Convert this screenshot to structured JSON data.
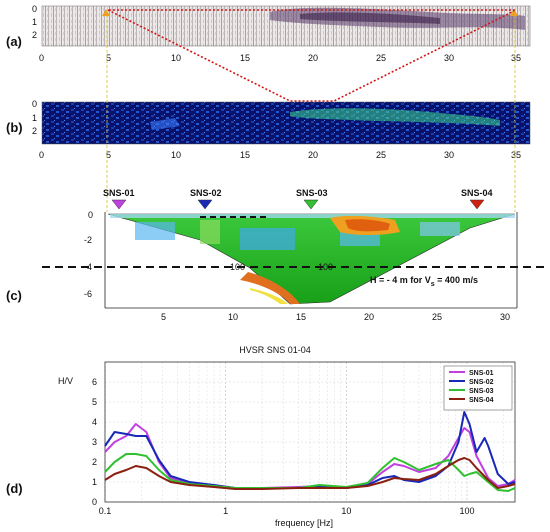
{
  "figure": {
    "panel_labels": [
      "(a)",
      "(b)",
      "(c)",
      "(d)"
    ]
  },
  "panel_a": {
    "x_ticks": [
      "0",
      "5",
      "10",
      "15",
      "20",
      "25",
      "30",
      "35"
    ],
    "y_ticks": [
      "0",
      "1",
      "2"
    ]
  },
  "panel_b": {
    "x_ticks": [
      "0",
      "5",
      "10",
      "15",
      "20",
      "25",
      "30",
      "35"
    ],
    "y_ticks": [
      "0",
      "1",
      "2"
    ]
  },
  "panel_c": {
    "stations": [
      {
        "name": "SNS-01",
        "color": "#c040e0"
      },
      {
        "name": "SNS-02",
        "color": "#1a28b8"
      },
      {
        "name": "SNS-03",
        "color": "#30c030"
      },
      {
        "name": "SNS-04",
        "color": "#d02010"
      }
    ],
    "x_ticks": [
      "5",
      "10",
      "15",
      "20",
      "25",
      "30"
    ],
    "y_ticks": [
      "0",
      "-2",
      "-4",
      "-6"
    ],
    "annotation_prefix": "H = - 4 m for V",
    "annotation_sub": "s",
    "annotation_suffix": " = 400 m/s",
    "contour_labels": [
      "100",
      "100"
    ]
  },
  "chart_data": {
    "type": "line",
    "title": "HVSR  SNS 01-04",
    "xlabel": "frequency [Hz]",
    "ylabel": "H/V",
    "xscale": "log",
    "xlim": [
      0.1,
      250
    ],
    "ylim": [
      0,
      7
    ],
    "x_tick_labels": [
      "0.1",
      "1",
      "10",
      "100"
    ],
    "y_tick_labels": [
      "0",
      "1",
      "2",
      "3",
      "4",
      "5",
      "6"
    ],
    "legend_position": "top-right",
    "grid": true,
    "series": [
      {
        "name": "SNS-01",
        "color": "#c040e0",
        "points": [
          [
            0.1,
            2.5
          ],
          [
            0.12,
            3.0
          ],
          [
            0.15,
            3.3
          ],
          [
            0.18,
            3.9
          ],
          [
            0.22,
            3.5
          ],
          [
            0.28,
            2.0
          ],
          [
            0.35,
            1.2
          ],
          [
            0.5,
            0.95
          ],
          [
            0.8,
            0.8
          ],
          [
            1.2,
            0.7
          ],
          [
            2,
            0.7
          ],
          [
            4,
            0.75
          ],
          [
            6,
            0.8
          ],
          [
            10,
            0.7
          ],
          [
            15,
            0.9
          ],
          [
            20,
            1.5
          ],
          [
            25,
            1.9
          ],
          [
            30,
            1.8
          ],
          [
            40,
            1.5
          ],
          [
            55,
            1.7
          ],
          [
            70,
            2.3
          ],
          [
            85,
            3.2
          ],
          [
            95,
            3.7
          ],
          [
            105,
            3.5
          ],
          [
            120,
            2.3
          ],
          [
            150,
            1.2
          ],
          [
            180,
            0.8
          ],
          [
            220,
            0.9
          ],
          [
            250,
            1.1
          ]
        ]
      },
      {
        "name": "SNS-02",
        "color": "#1a28b8",
        "points": [
          [
            0.1,
            2.8
          ],
          [
            0.12,
            3.5
          ],
          [
            0.15,
            3.4
          ],
          [
            0.18,
            3.3
          ],
          [
            0.22,
            3.3
          ],
          [
            0.28,
            2.1
          ],
          [
            0.35,
            1.3
          ],
          [
            0.5,
            1.0
          ],
          [
            0.8,
            0.85
          ],
          [
            1.2,
            0.7
          ],
          [
            2,
            0.7
          ],
          [
            4,
            0.7
          ],
          [
            6,
            0.8
          ],
          [
            10,
            0.7
          ],
          [
            15,
            0.85
          ],
          [
            20,
            1.2
          ],
          [
            25,
            1.3
          ],
          [
            30,
            1.1
          ],
          [
            40,
            1.0
          ],
          [
            55,
            1.3
          ],
          [
            70,
            1.8
          ],
          [
            85,
            3.0
          ],
          [
            95,
            4.5
          ],
          [
            105,
            3.9
          ],
          [
            120,
            2.5
          ],
          [
            140,
            3.2
          ],
          [
            150,
            2.8
          ],
          [
            180,
            1.4
          ],
          [
            220,
            0.9
          ],
          [
            250,
            1.0
          ]
        ]
      },
      {
        "name": "SNS-03",
        "color": "#30c030",
        "points": [
          [
            0.1,
            1.5
          ],
          [
            0.12,
            2.0
          ],
          [
            0.15,
            2.4
          ],
          [
            0.18,
            2.4
          ],
          [
            0.22,
            2.3
          ],
          [
            0.28,
            1.6
          ],
          [
            0.35,
            1.1
          ],
          [
            0.5,
            0.9
          ],
          [
            0.8,
            0.8
          ],
          [
            1.2,
            0.7
          ],
          [
            2,
            0.7
          ],
          [
            4,
            0.7
          ],
          [
            6,
            0.85
          ],
          [
            10,
            0.75
          ],
          [
            15,
            0.95
          ],
          [
            20,
            1.7
          ],
          [
            25,
            2.2
          ],
          [
            30,
            2.0
          ],
          [
            40,
            1.6
          ],
          [
            55,
            1.9
          ],
          [
            70,
            2.1
          ],
          [
            85,
            1.6
          ],
          [
            95,
            1.3
          ],
          [
            105,
            1.4
          ],
          [
            120,
            1.5
          ],
          [
            150,
            1.0
          ],
          [
            180,
            0.6
          ],
          [
            220,
            0.55
          ],
          [
            250,
            0.7
          ]
        ]
      },
      {
        "name": "SNS-04",
        "color": "#8a2010",
        "points": [
          [
            0.1,
            1.1
          ],
          [
            0.12,
            1.4
          ],
          [
            0.15,
            1.6
          ],
          [
            0.18,
            1.8
          ],
          [
            0.22,
            1.7
          ],
          [
            0.28,
            1.3
          ],
          [
            0.35,
            1.0
          ],
          [
            0.5,
            0.85
          ],
          [
            0.8,
            0.75
          ],
          [
            1.2,
            0.65
          ],
          [
            2,
            0.65
          ],
          [
            4,
            0.7
          ],
          [
            6,
            0.7
          ],
          [
            10,
            0.7
          ],
          [
            15,
            0.8
          ],
          [
            20,
            1.0
          ],
          [
            25,
            1.2
          ],
          [
            30,
            1.15
          ],
          [
            40,
            1.1
          ],
          [
            55,
            1.4
          ],
          [
            70,
            1.8
          ],
          [
            85,
            2.1
          ],
          [
            95,
            2.2
          ],
          [
            105,
            2.1
          ],
          [
            120,
            1.7
          ],
          [
            150,
            1.1
          ],
          [
            180,
            0.7
          ],
          [
            220,
            0.8
          ],
          [
            250,
            0.9
          ]
        ]
      }
    ]
  }
}
